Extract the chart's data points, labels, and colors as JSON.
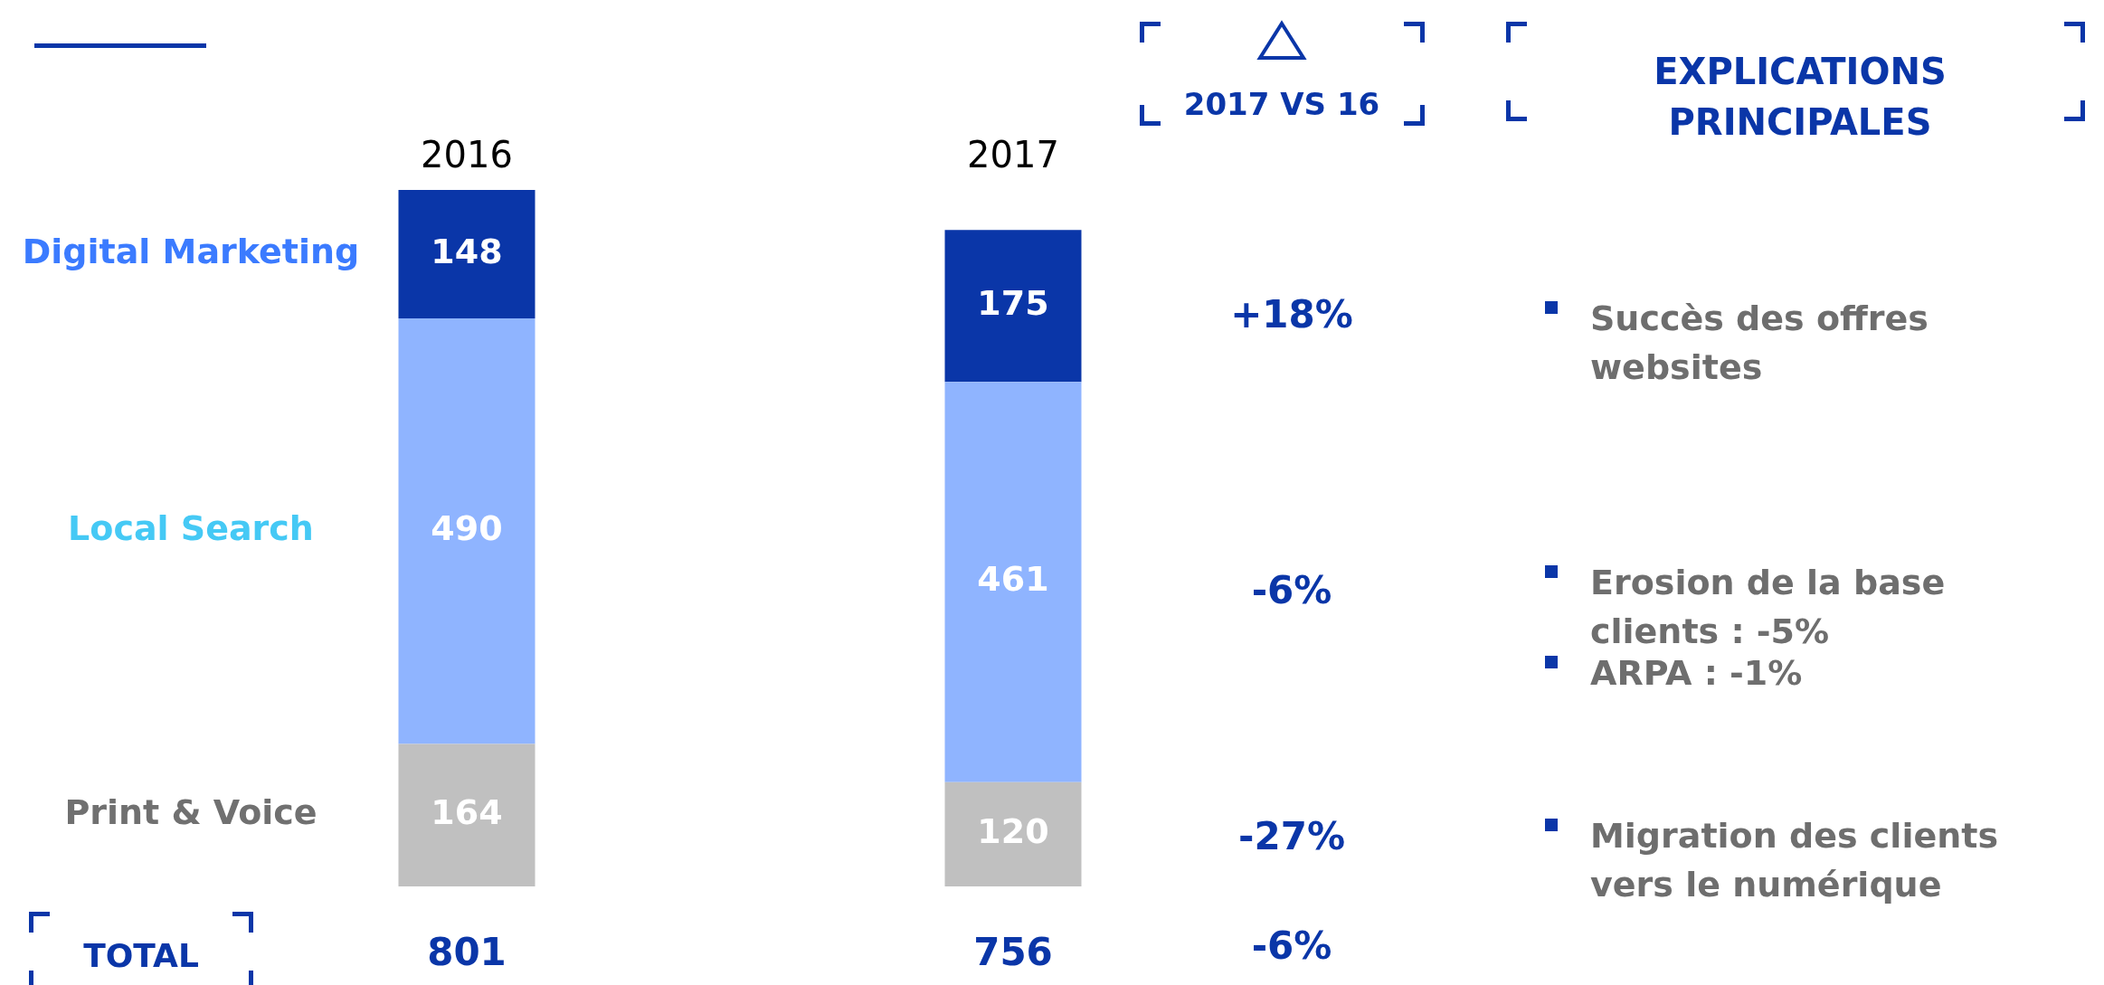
{
  "chart_data": {
    "type": "bar",
    "stacked": true,
    "data_labels": true,
    "categories": [
      "2016",
      "2017"
    ],
    "series": [
      {
        "name": "Print & Voice",
        "color": "#c0c0c0",
        "values": [
          164,
          120
        ]
      },
      {
        "name": "Local Search",
        "color": "#8fb4ff",
        "values": [
          490,
          461
        ]
      },
      {
        "name": "Digital Marketing",
        "color": "#0a36a8",
        "values": [
          148,
          175
        ]
      }
    ],
    "totals": [
      "801",
      "756"
    ],
    "annotations": [
      "TOTAL",
      "2017 VS 16",
      "+18%",
      "-6%",
      "-27%",
      "-6%",
      "EXPLICATIONS PRINCIPALES",
      "Succès des offres websites",
      "Erosion de la base clients : -5%",
      "ARPA : -1%",
      "Migration des clients vers le numérique"
    ]
  }
}
